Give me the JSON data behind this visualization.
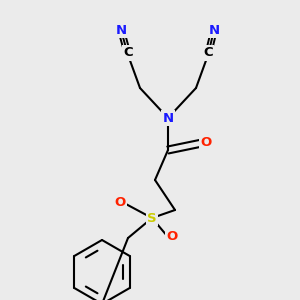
{
  "background_color": "#ebebeb",
  "colors": {
    "N": "#1a1aff",
    "O": "#ff2200",
    "S": "#cccc00",
    "C": "#000000",
    "bond": "#000000"
  },
  "figsize": [
    3.0,
    3.0
  ],
  "dpi": 100
}
